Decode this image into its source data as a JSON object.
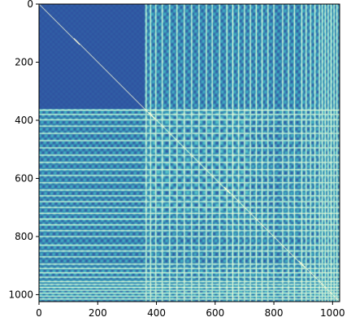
{
  "chart_data": {
    "type": "heatmap",
    "title": "",
    "xlabel": "",
    "ylabel": "",
    "colormap": "YlGnBu",
    "colors": {
      "low": "#2b3f9a",
      "mid": "#41b6c4",
      "high": "#ffffd9"
    },
    "matrix_size": 1024,
    "xlim": [
      0,
      1024
    ],
    "ylim": [
      1024,
      0
    ],
    "x_ticks": [
      0,
      200,
      400,
      600,
      800,
      1000
    ],
    "y_ticks": [
      0,
      200,
      400,
      600,
      800,
      1000
    ],
    "x_tick_labels": [
      "0",
      "200",
      "400",
      "600",
      "800",
      "1000"
    ],
    "y_tick_labels": [
      "0",
      "200",
      "400",
      "600",
      "800",
      "1000"
    ],
    "block_boundaries": [
      360,
      715
    ],
    "bright_stripes": [
      365,
      380,
      398,
      420,
      445,
      470,
      495,
      520,
      545,
      570,
      590,
      615,
      640,
      660,
      680,
      700,
      720,
      740,
      760,
      780,
      800,
      830,
      850,
      870,
      895,
      910,
      925,
      940,
      955,
      965,
      975,
      985,
      995,
      1005,
      1015
    ]
  }
}
